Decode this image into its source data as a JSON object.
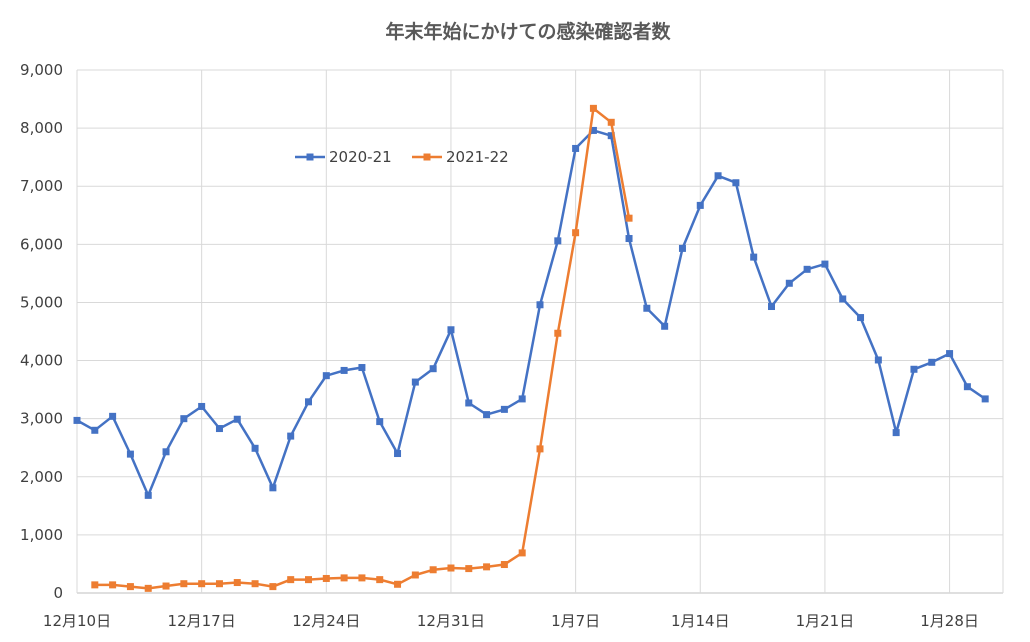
{
  "chart_data": {
    "type": "line",
    "title": "年末年始にかけての感染確認者数",
    "xlabel": "",
    "ylabel": "",
    "ylim": [
      0,
      9000
    ],
    "yticks": [
      0,
      1000,
      2000,
      3000,
      4000,
      5000,
      6000,
      7000,
      8000,
      9000
    ],
    "ytick_labels": [
      "0",
      "1,000",
      "2,000",
      "3,000",
      "4,000",
      "5,000",
      "6,000",
      "7,000",
      "8,000",
      "9,000"
    ],
    "x_range": [
      "12月10日",
      "1月31日"
    ],
    "xtick_labels": [
      "12月10日",
      "12月17日",
      "12月24日",
      "12月31日",
      "1月7日",
      "1月14日",
      "1月21日",
      "1月28日"
    ],
    "grid": true,
    "legend_position": "top-left",
    "series": [
      {
        "name": "2020-21",
        "color": "#4472C4",
        "start": "12月10日",
        "values": [
          2970,
          2800,
          3040,
          2390,
          1680,
          2430,
          3000,
          3210,
          2830,
          2990,
          2490,
          1810,
          2700,
          3290,
          3740,
          3830,
          3880,
          2950,
          2400,
          3630,
          3860,
          4530,
          3270,
          3070,
          3160,
          3340,
          4960,
          6060,
          7650,
          7960,
          7870,
          6100,
          4900,
          4590,
          5930,
          6670,
          7180,
          7060,
          5780,
          4930,
          5330,
          5570,
          5660,
          5060,
          4740,
          4010,
          2760,
          3850,
          3970,
          4120,
          3550,
          3340
        ]
      },
      {
        "name": "2021-22",
        "color": "#ED7D31",
        "start": "12月11日",
        "values": [
          140,
          140,
          110,
          80,
          120,
          160,
          160,
          160,
          180,
          160,
          110,
          230,
          230,
          250,
          260,
          260,
          230,
          150,
          310,
          400,
          430,
          420,
          450,
          490,
          690,
          2480,
          4470,
          6200,
          8340,
          8100,
          6450
        ]
      }
    ]
  }
}
